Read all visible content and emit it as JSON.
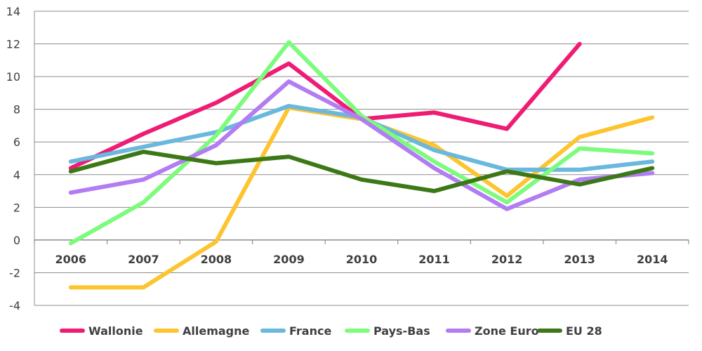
{
  "chart_data": {
    "type": "line",
    "title": "",
    "xlabel": "",
    "ylabel": "",
    "x": [
      "2006",
      "2007",
      "2008",
      "2009",
      "2010",
      "2011",
      "2012",
      "2013",
      "2014"
    ],
    "ylim": [
      -4,
      14
    ],
    "yticks": [
      -4,
      -2,
      0,
      2,
      4,
      6,
      8,
      10,
      12,
      14
    ],
    "grid": true,
    "legend_position": "bottom",
    "series": [
      {
        "name": "Wallonie",
        "color": "#ee1c74",
        "values": [
          4.4,
          6.5,
          8.4,
          10.8,
          7.4,
          7.8,
          6.8,
          12.0,
          null
        ]
      },
      {
        "name": "Allemagne",
        "color": "#fcc530",
        "values": [
          -2.9,
          -2.9,
          -0.1,
          8.1,
          7.4,
          5.8,
          2.7,
          6.3,
          7.5
        ]
      },
      {
        "name": "France",
        "color": "#6ab8dd",
        "values": [
          4.8,
          5.7,
          6.6,
          8.2,
          7.5,
          5.5,
          4.3,
          4.3,
          4.8
        ]
      },
      {
        "name": "Pays-Bas",
        "color": "#7dfb7d",
        "values": [
          -0.2,
          2.3,
          6.4,
          12.1,
          7.6,
          4.8,
          2.3,
          5.6,
          5.3
        ]
      },
      {
        "name": "Zone Euro",
        "color": "#b27cf2",
        "values": [
          2.9,
          3.7,
          5.8,
          9.7,
          7.4,
          4.4,
          1.9,
          3.7,
          4.1
        ]
      },
      {
        "name": "EU 28",
        "color": "#3d7816",
        "values": [
          4.2,
          5.4,
          4.7,
          5.1,
          3.7,
          3.0,
          4.2,
          3.4,
          4.4
        ]
      }
    ]
  }
}
